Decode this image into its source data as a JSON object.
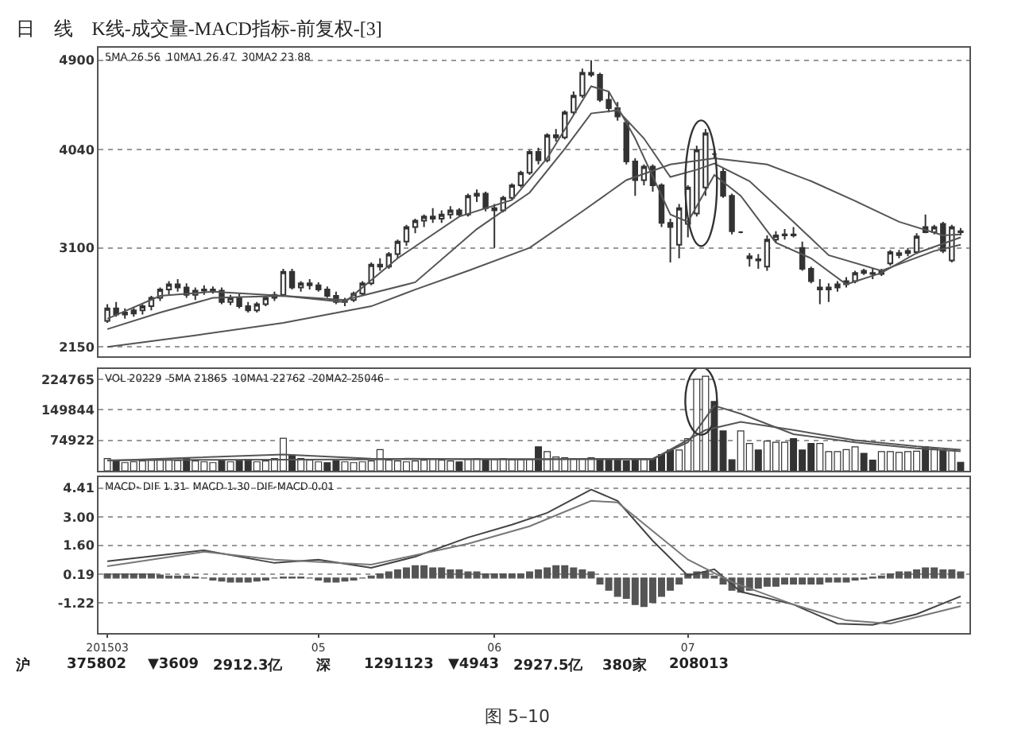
{
  "chart_data": [
    {
      "type": "candlestick",
      "title": "日　线　K线-成交量-MACD指标-前复权-[3]",
      "annotations": [
        "5MA 26.56  10MA1 26.47  30MA2 23.88"
      ],
      "categories": [
        "201503",
        null,
        null,
        null,
        null,
        null,
        null,
        null,
        null,
        null,
        null,
        null,
        null,
        null,
        null,
        null,
        null,
        null,
        null,
        null,
        null,
        null,
        null,
        null,
        "05",
        null,
        null,
        null,
        null,
        null,
        null,
        null,
        null,
        null,
        null,
        null,
        null,
        null,
        null,
        null,
        null,
        null,
        null,
        null,
        "06",
        null,
        null,
        null,
        null,
        null,
        null,
        null,
        null,
        null,
        null,
        null,
        null,
        null,
        null,
        null,
        null,
        null,
        null,
        null,
        null,
        null,
        "07",
        null,
        null,
        null,
        null,
        null,
        null,
        null,
        null,
        null,
        null,
        null,
        null,
        null,
        null,
        null,
        null,
        null,
        null,
        null,
        null,
        null,
        null,
        null,
        null,
        null,
        null,
        null,
        null,
        null,
        null,
        null
      ],
      "ohlc": [
        [
          2400,
          2560,
          2380,
          2520
        ],
        [
          2520,
          2580,
          2440,
          2460
        ],
        [
          2460,
          2520,
          2420,
          2480
        ],
        [
          2470,
          2530,
          2440,
          2500
        ],
        [
          2500,
          2560,
          2460,
          2540
        ],
        [
          2540,
          2640,
          2500,
          2620
        ],
        [
          2620,
          2720,
          2590,
          2700
        ],
        [
          2700,
          2780,
          2650,
          2750
        ],
        [
          2750,
          2800,
          2680,
          2720
        ],
        [
          2720,
          2760,
          2620,
          2650
        ],
        [
          2650,
          2720,
          2600,
          2690
        ],
        [
          2690,
          2740,
          2650,
          2700
        ],
        [
          2700,
          2730,
          2660,
          2690
        ],
        [
          2690,
          2720,
          2560,
          2580
        ],
        [
          2580,
          2650,
          2550,
          2620
        ],
        [
          2620,
          2660,
          2520,
          2540
        ],
        [
          2540,
          2580,
          2480,
          2500
        ],
        [
          2500,
          2580,
          2480,
          2560
        ],
        [
          2560,
          2640,
          2540,
          2620
        ],
        [
          2620,
          2680,
          2590,
          2650
        ],
        [
          2650,
          2900,
          2630,
          2870
        ],
        [
          2870,
          2900,
          2700,
          2720
        ],
        [
          2720,
          2780,
          2680,
          2760
        ],
        [
          2760,
          2800,
          2700,
          2740
        ],
        [
          2740,
          2770,
          2680,
          2700
        ],
        [
          2700,
          2730,
          2620,
          2640
        ],
        [
          2640,
          2680,
          2560,
          2580
        ],
        [
          2580,
          2620,
          2540,
          2600
        ],
        [
          2600,
          2680,
          2580,
          2660
        ],
        [
          2660,
          2780,
          2640,
          2760
        ],
        [
          2760,
          2960,
          2740,
          2940
        ],
        [
          2940,
          3000,
          2880,
          2920
        ],
        [
          2920,
          3060,
          2900,
          3040
        ],
        [
          3040,
          3180,
          3000,
          3160
        ],
        [
          3160,
          3320,
          3120,
          3300
        ],
        [
          3300,
          3380,
          3240,
          3360
        ],
        [
          3360,
          3420,
          3300,
          3400
        ],
        [
          3400,
          3480,
          3340,
          3380
        ],
        [
          3380,
          3460,
          3340,
          3420
        ],
        [
          3420,
          3500,
          3380,
          3460
        ],
        [
          3460,
          3480,
          3400,
          3420
        ],
        [
          3420,
          3620,
          3400,
          3600
        ],
        [
          3600,
          3660,
          3540,
          3620
        ],
        [
          3620,
          3640,
          3450,
          3480
        ],
        [
          3480,
          3520,
          3100,
          3460
        ],
        [
          3460,
          3600,
          3440,
          3580
        ],
        [
          3580,
          3720,
          3560,
          3700
        ],
        [
          3700,
          3840,
          3680,
          3820
        ],
        [
          3820,
          4040,
          3800,
          4020
        ],
        [
          4020,
          4060,
          3900,
          3940
        ],
        [
          3940,
          4200,
          3920,
          4180
        ],
        [
          4180,
          4240,
          4120,
          4160
        ],
        [
          4160,
          4420,
          4140,
          4400
        ],
        [
          4400,
          4600,
          4380,
          4560
        ],
        [
          4560,
          4820,
          4540,
          4780
        ],
        [
          4780,
          4900,
          4740,
          4760
        ],
        [
          4760,
          4780,
          4500,
          4520
        ],
        [
          4520,
          4600,
          4400,
          4440
        ],
        [
          4440,
          4500,
          4320,
          4360
        ],
        [
          4300,
          4320,
          3900,
          3930
        ],
        [
          3930,
          3960,
          3600,
          3750
        ],
        [
          3750,
          3900,
          3700,
          3880
        ],
        [
          3880,
          3900,
          3640,
          3700
        ],
        [
          3700,
          3720,
          3300,
          3340
        ],
        [
          3340,
          3380,
          2960,
          3300
        ],
        [
          3130,
          3520,
          3000,
          3480
        ],
        [
          3330,
          3700,
          3200,
          3680
        ],
        [
          3430,
          4080,
          3400,
          4040
        ],
        [
          3680,
          4240,
          3600,
          4200
        ],
        [
          4000,
          4060,
          3960,
          4000
        ],
        [
          3830,
          3860,
          3580,
          3600
        ],
        [
          3600,
          3620,
          3230,
          3260
        ],
        [
          3250,
          3260,
          3240,
          3250
        ],
        [
          3000,
          3050,
          2920,
          3020
        ],
        [
          2980,
          3040,
          2900,
          2990
        ],
        [
          2920,
          3220,
          2880,
          3180
        ],
        [
          3180,
          3260,
          3150,
          3220
        ],
        [
          3220,
          3280,
          3180,
          3230
        ],
        [
          3230,
          3300,
          3200,
          3220
        ],
        [
          3100,
          3160,
          2880,
          2900
        ],
        [
          2900,
          2920,
          2760,
          2780
        ],
        [
          2700,
          2800,
          2560,
          2720
        ],
        [
          2700,
          2760,
          2580,
          2720
        ],
        [
          2720,
          2780,
          2680,
          2750
        ],
        [
          2750,
          2820,
          2720,
          2780
        ],
        [
          2780,
          2880,
          2760,
          2860
        ],
        [
          2880,
          2900,
          2840,
          2860
        ],
        [
          2860,
          2900,
          2800,
          2850
        ],
        [
          2850,
          2900,
          2830,
          2880
        ],
        [
          2950,
          3080,
          2930,
          3060
        ],
        [
          3030,
          3080,
          3000,
          3050
        ],
        [
          3050,
          3100,
          3020,
          3070
        ],
        [
          3060,
          3240,
          3040,
          3210
        ],
        [
          3300,
          3420,
          3240,
          3250
        ],
        [
          3250,
          3320,
          3230,
          3300
        ],
        [
          3330,
          3350,
          3050,
          3070
        ],
        [
          2980,
          3320,
          2960,
          3300
        ],
        [
          3250,
          3290,
          3220,
          3260
        ]
      ],
      "series": [
        {
          "type": "line",
          "color": "#555555",
          "values": [
            2150,
            null,
            null,
            null,
            null,
            null,
            null,
            null,
            null,
            null,
            2260,
            null,
            null,
            null,
            null,
            null,
            null,
            null,
            null,
            null,
            2380,
            null,
            null,
            null,
            null,
            null,
            null,
            null,
            null,
            null,
            2540,
            null,
            null,
            null,
            null,
            2700,
            null,
            null,
            null,
            null,
            null,
            2880,
            null,
            null,
            null,
            null,
            null,
            null,
            3100,
            null,
            null,
            null,
            null,
            null,
            3450,
            null,
            null,
            null,
            null,
            3750,
            null,
            null,
            null,
            null,
            3900,
            null,
            null,
            null,
            null,
            3960,
            null,
            null,
            null,
            null,
            null,
            3900,
            null,
            null,
            null,
            null,
            3740,
            null,
            null,
            null,
            null,
            3550,
            null,
            null,
            null,
            null,
            3350,
            null,
            null,
            null,
            null,
            3220,
            null,
            3230
          ]
        },
        {
          "type": "line",
          "color": "#555555",
          "values": [
            2320,
            null,
            null,
            null,
            null,
            null,
            2480,
            null,
            null,
            null,
            null,
            null,
            2620,
            null,
            null,
            null,
            null,
            null,
            null,
            null,
            2640,
            null,
            null,
            null,
            null,
            null,
            null,
            2600,
            null,
            null,
            null,
            null,
            null,
            null,
            null,
            2770,
            null,
            null,
            null,
            null,
            null,
            null,
            3280,
            null,
            null,
            null,
            null,
            null,
            3630,
            null,
            null,
            null,
            4050,
            null,
            null,
            4390,
            null,
            null,
            4420,
            null,
            null,
            4150,
            null,
            null,
            3780,
            null,
            null,
            3850,
            null,
            3910,
            null,
            null,
            null,
            3740,
            null,
            null,
            null,
            null,
            3350,
            null,
            null,
            null,
            3030,
            null,
            null,
            null,
            null,
            null,
            2880,
            null,
            null,
            null,
            null,
            null,
            3070,
            null,
            null,
            3130
          ]
        },
        {
          "type": "line",
          "color": "#555555",
          "values": [
            2420,
            null,
            null,
            null,
            null,
            null,
            2640,
            null,
            null,
            null,
            null,
            null,
            2680,
            null,
            null,
            null,
            null,
            null,
            null,
            null,
            2640,
            null,
            null,
            null,
            null,
            null,
            null,
            2580,
            null,
            null,
            null,
            null,
            null,
            3000,
            null,
            null,
            null,
            null,
            null,
            null,
            3400,
            null,
            null,
            null,
            null,
            null,
            3560,
            null,
            null,
            null,
            3960,
            null,
            null,
            null,
            null,
            4650,
            null,
            4600,
            null,
            null,
            4150,
            null,
            null,
            null,
            3420,
            null,
            3350,
            null,
            null,
            3800,
            null,
            null,
            3600,
            null,
            null,
            null,
            3150,
            null,
            null,
            null,
            3000,
            null,
            null,
            null,
            2750,
            null,
            null,
            null,
            2860,
            null,
            null,
            null,
            3050,
            null,
            null,
            null,
            null,
            3200
          ]
        }
      ],
      "ylim": [
        2060,
        5020
      ],
      "yticks": [
        2150,
        3100,
        4040,
        4900
      ],
      "grid": "y",
      "tick_labels": "y"
    },
    {
      "type": "bar",
      "annotations": [
        "VOL 20229  5MA 21865  10MA1 22762  20MA2 25046"
      ],
      "categories": [
        "201503",
        null,
        null,
        null,
        null,
        null,
        null,
        null,
        null,
        null,
        null,
        null,
        null,
        null,
        null,
        null,
        null,
        null,
        null,
        null,
        null,
        null,
        null,
        null,
        "05",
        null,
        null,
        null,
        null,
        null,
        null,
        null,
        null,
        null,
        null,
        null,
        null,
        null,
        null,
        null,
        null,
        null,
        null,
        null,
        "06",
        null,
        null,
        null,
        null,
        null,
        null,
        null,
        null,
        null,
        null,
        null,
        null,
        null,
        null,
        null,
        null,
        null,
        null,
        null,
        null,
        null,
        "07",
        null,
        null,
        null,
        null,
        null,
        null,
        null,
        null,
        null,
        null,
        null,
        null,
        null,
        null,
        null,
        null,
        null,
        null,
        null,
        null,
        null,
        null,
        null,
        null,
        null,
        null,
        null,
        null,
        null,
        null,
        null
      ],
      "values": [
        30000,
        25000,
        20000,
        22000,
        24000,
        26000,
        28000,
        27000,
        25000,
        30000,
        24000,
        22000,
        20000,
        26000,
        22000,
        25000,
        28000,
        22000,
        24000,
        30000,
        80000,
        38000,
        30000,
        26000,
        22000,
        20000,
        24000,
        22000,
        20000,
        22000,
        24000,
        52000,
        26000,
        24000,
        22000,
        24000,
        26000,
        28000,
        26000,
        24000,
        22000,
        28000,
        30000,
        26000,
        28000,
        30000,
        27000,
        27000,
        28000,
        59000,
        47000,
        34000,
        32000,
        30000,
        30000,
        32000,
        30000,
        28000,
        26000,
        24000,
        26000,
        28000,
        30000,
        40000,
        51000,
        51000,
        79000,
        225000,
        232000,
        170000,
        98000,
        27000,
        98000,
        67000,
        51000,
        73000,
        70000,
        70000,
        79000,
        51000,
        67000,
        67000,
        47000,
        47000,
        52000,
        59000,
        43000,
        26000,
        47000,
        47000,
        45000,
        47000,
        48000,
        59000,
        55000,
        51000,
        50000,
        21000
      ],
      "colors": [
        "#ffffff",
        "#333333",
        "#ffffff",
        "#ffffff",
        "#ffffff",
        "#ffffff",
        "#ffffff",
        "#ffffff",
        "#ffffff",
        "#333333",
        "#ffffff",
        "#ffffff",
        "#ffffff",
        "#333333",
        "#ffffff",
        "#333333",
        "#333333",
        "#ffffff",
        "#ffffff",
        "#ffffff",
        "#ffffff",
        "#333333",
        "#ffffff",
        "#ffffff",
        "#ffffff",
        "#333333",
        "#333333",
        "#ffffff",
        "#ffffff",
        "#ffffff",
        "#ffffff",
        "#ffffff",
        "#ffffff",
        "#ffffff",
        "#ffffff",
        "#ffffff",
        "#ffffff",
        "#ffffff",
        "#ffffff",
        "#ffffff",
        "#333333",
        "#ffffff",
        "#ffffff",
        "#333333",
        "#ffffff",
        "#ffffff",
        "#ffffff",
        "#ffffff",
        "#ffffff",
        "#333333",
        "#ffffff",
        "#ffffff",
        "#ffffff",
        "#ffffff",
        "#ffffff",
        "#ffffff",
        "#333333",
        "#333333",
        "#333333",
        "#333333",
        "#333333",
        "#ffffff",
        "#333333",
        "#333333",
        "#333333",
        "#ffffff",
        "#ffffff",
        "#ffffff",
        "#ffffff",
        "#333333",
        "#333333",
        "#333333",
        "#ffffff",
        "#ffffff",
        "#333333",
        "#ffffff",
        "#ffffff",
        "#ffffff",
        "#333333",
        "#333333",
        "#333333",
        "#ffffff",
        "#ffffff",
        "#ffffff",
        "#ffffff",
        "#ffffff",
        "#333333",
        "#333333",
        "#ffffff",
        "#ffffff",
        "#ffffff",
        "#ffffff",
        "#ffffff",
        "#333333",
        "#ffffff",
        "#333333",
        "#ffffff",
        "#333333"
      ],
      "series": [
        {
          "type": "line",
          "color": "#555555",
          "values": [
            25000,
            null,
            null,
            null,
            null,
            null,
            null,
            null,
            null,
            null,
            null,
            null,
            null,
            null,
            null,
            null,
            null,
            null,
            null,
            null,
            40000,
            null,
            null,
            null,
            null,
            null,
            null,
            null,
            null,
            null,
            30000,
            null,
            null,
            null,
            null,
            null,
            null,
            null,
            null,
            null,
            null,
            null,
            null,
            null,
            null,
            null,
            28000,
            null,
            null,
            null,
            null,
            null,
            null,
            null,
            null,
            null,
            null,
            null,
            null,
            null,
            null,
            null,
            30000,
            null,
            null,
            null,
            70000,
            null,
            null,
            160000,
            null,
            null,
            140000,
            null,
            null,
            null,
            null,
            null,
            90000,
            null,
            null,
            null,
            null,
            null,
            null,
            70000,
            null,
            null,
            null,
            null,
            null,
            null,
            55000,
            null,
            null,
            null,
            null,
            48000
          ]
        },
        {
          "type": "line",
          "color": "#555555",
          "values": [
            26000,
            null,
            null,
            null,
            null,
            null,
            null,
            null,
            null,
            null,
            null,
            null,
            null,
            null,
            null,
            null,
            null,
            null,
            null,
            null,
            null,
            null,
            null,
            null,
            null,
            null,
            null,
            null,
            null,
            null,
            28000,
            null,
            null,
            null,
            null,
            null,
            null,
            null,
            null,
            null,
            null,
            null,
            null,
            null,
            null,
            null,
            29000,
            null,
            null,
            null,
            null,
            null,
            null,
            null,
            null,
            null,
            null,
            null,
            null,
            null,
            null,
            null,
            28000,
            null,
            null,
            null,
            null,
            null,
            100000,
            null,
            null,
            null,
            120000,
            null,
            null,
            null,
            null,
            null,
            100000,
            null,
            null,
            null,
            null,
            null,
            null,
            75000,
            null,
            null,
            null,
            null,
            null,
            null,
            60000,
            null,
            null,
            null,
            null,
            52000
          ]
        }
      ],
      "ylim": [
        0,
        250000
      ],
      "yticks": [
        74922,
        149844,
        224765
      ],
      "grid": "y",
      "tick_labels": "y"
    },
    {
      "type": "line",
      "annotations": [
        "MACD- DIF 1.31  MACD 1.30  DIF-MACD 0.01",
        "沪",
        "375802",
        "▼3609",
        "2912.3亿",
        "深",
        "1291123",
        "▼4943",
        "2927.5亿",
        "380家",
        "208013",
        "图 5–10"
      ],
      "categories": [
        "201503",
        null,
        null,
        null,
        null,
        null,
        null,
        null,
        null,
        null,
        null,
        null,
        null,
        null,
        null,
        null,
        null,
        null,
        null,
        null,
        null,
        null,
        null,
        null,
        "05",
        null,
        null,
        null,
        null,
        null,
        null,
        null,
        null,
        null,
        null,
        null,
        null,
        null,
        null,
        null,
        null,
        null,
        null,
        null,
        "06",
        null,
        null,
        null,
        null,
        null,
        null,
        null,
        null,
        null,
        null,
        null,
        null,
        null,
        null,
        null,
        null,
        null,
        null,
        null,
        null,
        null,
        "07",
        null,
        null,
        null,
        null,
        null,
        null,
        null,
        null,
        null,
        null,
        null,
        null,
        null,
        null,
        null,
        null,
        null,
        null,
        null,
        null,
        null,
        null,
        null,
        null,
        null,
        null,
        null,
        null,
        null,
        null,
        null
      ],
      "series": [
        {
          "type": "bar",
          "color": "#555555",
          "values": [
            0.2,
            0.2,
            0.2,
            0.2,
            0.2,
            0.2,
            0.15,
            0.1,
            0.1,
            0.1,
            0.05,
            0,
            -0.1,
            -0.15,
            -0.2,
            -0.2,
            -0.2,
            -0.15,
            -0.1,
            0,
            0.05,
            0.05,
            0.05,
            0,
            -0.1,
            -0.2,
            -0.2,
            -0.15,
            -0.1,
            0,
            0.1,
            0.2,
            0.3,
            0.4,
            0.5,
            0.6,
            0.6,
            0.5,
            0.5,
            0.4,
            0.4,
            0.3,
            0.3,
            0.2,
            0.2,
            0.2,
            0.2,
            0.2,
            0.3,
            0.4,
            0.5,
            0.6,
            0.6,
            0.5,
            0.4,
            0.3,
            -0.3,
            -0.6,
            -0.9,
            -1.0,
            -1.3,
            -1.4,
            -1.2,
            -0.9,
            -0.6,
            -0.3,
            0.2,
            0.3,
            0.3,
            0.1,
            -0.3,
            -0.6,
            -0.7,
            -0.6,
            -0.5,
            -0.4,
            -0.4,
            -0.3,
            -0.3,
            -0.3,
            -0.3,
            -0.3,
            -0.2,
            -0.2,
            -0.2,
            -0.1,
            -0.05,
            0.05,
            0.1,
            0.2,
            0.3,
            0.3,
            0.4,
            0.5,
            0.5,
            0.4,
            0.4,
            0.3
          ]
        },
        {
          "type": "line",
          "color": "#444444",
          "values": [
            0.82,
            null,
            null,
            null,
            null,
            null,
            null,
            null,
            null,
            null,
            null,
            1.36,
            null,
            null,
            null,
            null,
            null,
            null,
            null,
            0.74,
            null,
            null,
            null,
            null,
            0.9,
            null,
            null,
            null,
            null,
            null,
            0.5,
            null,
            null,
            null,
            null,
            1.05,
            null,
            null,
            null,
            null,
            null,
            1.99,
            null,
            null,
            null,
            null,
            2.62,
            null,
            null,
            null,
            3.2,
            null,
            null,
            null,
            null,
            4.34,
            null,
            null,
            3.79,
            null,
            null,
            null,
            1.83,
            null,
            null,
            null,
            0.11,
            null,
            null,
            0.43,
            null,
            null,
            -0.67,
            null,
            null,
            null,
            null,
            null,
            -1.3,
            null,
            null,
            null,
            null,
            -2.24,
            null,
            null,
            null,
            -2.3,
            null,
            null,
            null,
            null,
            -1.77,
            null,
            null,
            null,
            null,
            -0.9
          ]
        },
        {
          "type": "line",
          "color": "#777777",
          "values": [
            0.58,
            null,
            null,
            null,
            null,
            null,
            null,
            null,
            null,
            null,
            null,
            1.29,
            null,
            null,
            null,
            null,
            null,
            null,
            null,
            0.9,
            null,
            null,
            null,
            null,
            null,
            null,
            null,
            null,
            null,
            null,
            0.66,
            null,
            null,
            null,
            null,
            null,
            null,
            null,
            null,
            null,
            null,
            1.68,
            null,
            null,
            null,
            null,
            null,
            null,
            2.54,
            null,
            null,
            null,
            null,
            null,
            null,
            3.79,
            null,
            null,
            3.71,
            null,
            null,
            null,
            null,
            null,
            null,
            null,
            0.9,
            null,
            null,
            null,
            null,
            -0.2,
            null,
            null,
            null,
            null,
            null,
            null,
            -1.3,
            null,
            null,
            null,
            null,
            null,
            -2.08,
            null,
            null,
            null,
            null,
            -2.24,
            null,
            null,
            null,
            null,
            null,
            null,
            null,
            -1.38
          ]
        }
      ],
      "ylim": [
        -2.7,
        4.95
      ],
      "yticks": [
        -1.22,
        0.19,
        {
          "value": 1.6,
          "label": "1.60"
        },
        {
          "value": 3,
          "label": "3.00"
        },
        4.41
      ],
      "grid": "y"
    }
  ]
}
